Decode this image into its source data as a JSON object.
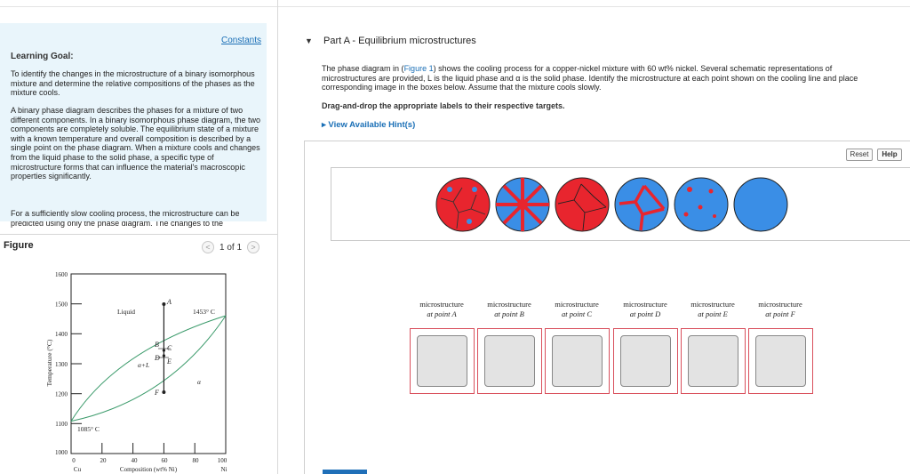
{
  "left_panel": {
    "constants_link": "Constants",
    "learning_goal": {
      "title": "Learning Goal:",
      "paragraph1": "To identify the changes in the microstructure of a binary isomorphous mixture and determine the relative compositions of the phases as the mixture cools.",
      "paragraph2": "A binary phase diagram describes the phases for a mixture of two different components. In a binary isomorphous phase diagram, the two components are completely soluble. The equilibrium state of a mixture with a known temperature and overall composition is described by a single point on the phase diagram. When a mixture cools and changes from the liquid phase to the solid phase, a specific type of microstructure forms that can influence the material's macroscopic properties significantly.",
      "paragraph3": "For a sufficiently slow cooling process, the microstructure can be predicted using only the phase diagram. The changes to the"
    },
    "figure": {
      "label": "Figure",
      "pager_prev": "<",
      "pager_text": "1 of 1",
      "pager_next": ">"
    },
    "phase_diagram": {
      "ylabel": "Temperature (°C)",
      "xlabel": "Composition (wt% Ni)",
      "y_ticks": [
        "1600",
        "1500",
        "1400",
        "1300",
        "1200",
        "1100",
        "1000"
      ],
      "x_ticks": [
        "0",
        "20",
        "40",
        "60",
        "80",
        "100"
      ],
      "x_end_left": "Cu",
      "x_end_right": "Ni",
      "region_liquid": "Liquid",
      "region_two_phase": "α+L",
      "region_alpha": "α",
      "label_melt_ni": "1453° C",
      "label_melt_cu": "1085° C",
      "point_labels": [
        "A",
        "B",
        "C",
        "D",
        "E",
        "F"
      ],
      "curve_color": "#3a9a6a"
    }
  },
  "right_panel": {
    "part_title": "Part A - Equilibrium microstructures",
    "problem_line1_a": "The phase diagram in (",
    "problem_line1_link": "Figure 1",
    "problem_line1_b": ") shows the cooling process for a copper-nickel mixture with 60 wt% nickel. Several schematic representations of",
    "problem_line2": "microstructures are provided, L is the liquid phase and α is the solid phase. Identify the microstructure at each point shown on the cooling line and place",
    "problem_line3": "corresponding image in the boxes below. Assume that the mixture cools slowly.",
    "instruction": "Drag-and-drop the appropriate labels to their respective targets.",
    "hint_link": "▸ View Available Hint(s)",
    "reset_button": "Reset",
    "help_button": "Help",
    "liquid_color": "#e8252e",
    "solid_color": "#3a8ee6",
    "targets": [
      {
        "line1": "microstructure",
        "line2": "at point A"
      },
      {
        "line1": "microstructure",
        "line2": "at point B"
      },
      {
        "line1": "microstructure",
        "line2": "at point C"
      },
      {
        "line1": "microstructure",
        "line2": "at point D"
      },
      {
        "line1": "microstructure",
        "line2": "at point E"
      },
      {
        "line1": "microstructure",
        "line2": "at point F"
      }
    ]
  }
}
